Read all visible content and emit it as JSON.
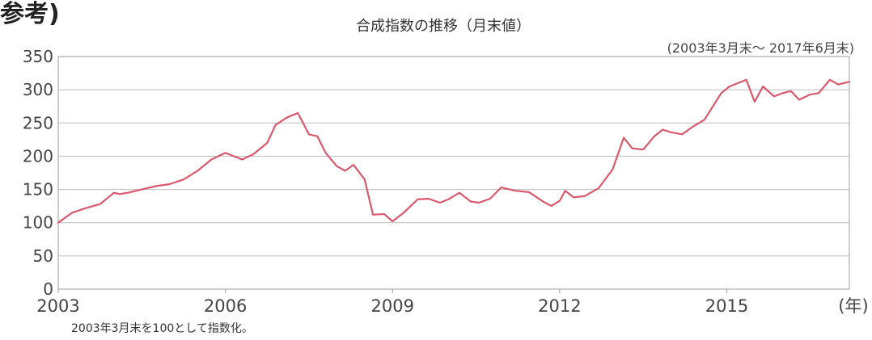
{
  "header": {
    "corner_text": "参考)",
    "title": "合成指数の推移（月末値）",
    "range": "(2003年3月末〜 2017年6月末)"
  },
  "footer": {
    "note": "2003年3月末を100として指数化。"
  },
  "colors": {
    "line": "#d9596e",
    "grid": "#bdbdbd"
  },
  "chart_data": {
    "type": "line",
    "title": "合成指数の推移（月末値）",
    "subtitle": "(2003年3月末〜 2017年6月末)",
    "xlabel": "(年)",
    "ylabel": "",
    "x_ticks": [
      "2003",
      "2006",
      "2009",
      "2012",
      "2015"
    ],
    "x_tick_values": [
      2003,
      2006,
      2009,
      2012,
      2015
    ],
    "xlim": [
      2003.0,
      2017.2
    ],
    "y_ticks": [
      "0",
      "50",
      "100",
      "150",
      "200",
      "250",
      "300",
      "350"
    ],
    "ylim": [
      0,
      350
    ],
    "grid": true,
    "legend": "none",
    "series": [
      {
        "x": [
          2003.0,
          2003.25,
          2003.5,
          2003.75,
          2004.0,
          2004.1,
          2004.25,
          2004.5,
          2004.75,
          2005.0,
          2005.25,
          2005.5,
          2005.75,
          2006.0,
          2006.15,
          2006.3,
          2006.5,
          2006.75,
          2006.9,
          2007.1,
          2007.3,
          2007.5,
          2007.65,
          2007.8,
          2008.0,
          2008.15,
          2008.3,
          2008.5,
          2008.65,
          2008.85,
          2009.0,
          2009.2,
          2009.45,
          2009.65,
          2009.85,
          2010.0,
          2010.2,
          2010.4,
          2010.55,
          2010.75,
          2010.95,
          2011.2,
          2011.45,
          2011.7,
          2011.85,
          2012.0,
          2012.1,
          2012.25,
          2012.45,
          2012.7,
          2012.95,
          2013.15,
          2013.3,
          2013.5,
          2013.7,
          2013.85,
          2014.0,
          2014.2,
          2014.4,
          2014.6,
          2014.75,
          2014.9,
          2015.05,
          2015.2,
          2015.35,
          2015.5,
          2015.65,
          2015.85,
          2016.0,
          2016.15,
          2016.3,
          2016.5,
          2016.65,
          2016.85,
          2017.0,
          2017.2
        ],
        "y": [
          100,
          115,
          122,
          128,
          145,
          143,
          145,
          150,
          155,
          158,
          165,
          178,
          195,
          205,
          200,
          195,
          203,
          220,
          247,
          258,
          265,
          233,
          230,
          205,
          185,
          178,
          187,
          165,
          112,
          113,
          102,
          115,
          135,
          136,
          130,
          135,
          145,
          132,
          130,
          136,
          153,
          148,
          146,
          132,
          125,
          133,
          148,
          138,
          140,
          152,
          180,
          228,
          212,
          210,
          230,
          240,
          236,
          233,
          245,
          255,
          275,
          295,
          305,
          310,
          315,
          282,
          305,
          290,
          295,
          298,
          285,
          293,
          295,
          315,
          308,
          312
        ]
      }
    ]
  }
}
